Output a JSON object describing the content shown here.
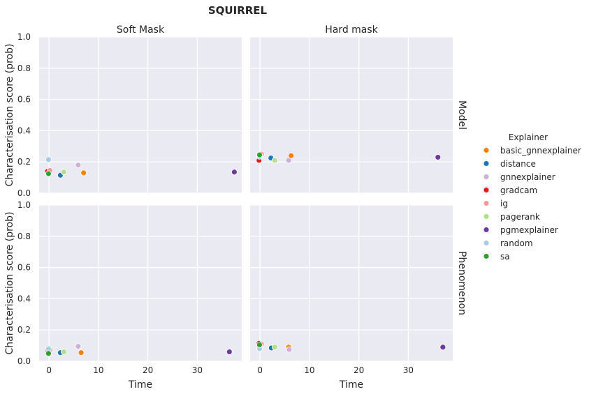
{
  "chart_data": {
    "type": "scatter",
    "title": "SQUIRREL",
    "columns": [
      "Soft Mask",
      "Hard mask"
    ],
    "rows": [
      "Model",
      "Phenomenon"
    ],
    "xlabel": "Time",
    "ylabel": "Characterisation score (prob)",
    "xlim": [
      -2,
      39
    ],
    "ylim": [
      0,
      1
    ],
    "xticks": [
      0,
      10,
      20,
      30
    ],
    "yticks": [
      0.0,
      0.2,
      0.4,
      0.6,
      0.8,
      1.0
    ],
    "xtick_labels": [
      "0",
      "10",
      "20",
      "30"
    ],
    "ytick_labels": [
      "0.0",
      "0.2",
      "0.4",
      "0.6",
      "0.8",
      "1.0"
    ],
    "grid": true,
    "legend_title": "Explainer",
    "legend_position": "right",
    "series": [
      {
        "name": "basic_gnnexplainer",
        "color": "#ff7f00",
        "points": {
          "Model|Soft Mask": [
            7.0,
            0.13
          ],
          "Model|Hard mask": [
            6.3,
            0.24
          ],
          "Phenomenon|Soft Mask": [
            6.5,
            0.055
          ],
          "Phenomenon|Hard mask": [
            5.8,
            0.09
          ]
        }
      },
      {
        "name": "distance",
        "color": "#1f78b4",
        "points": {
          "Model|Soft Mask": [
            2.3,
            0.115
          ],
          "Model|Hard mask": [
            2.2,
            0.225
          ],
          "Phenomenon|Soft Mask": [
            2.3,
            0.055
          ],
          "Phenomenon|Hard mask": [
            2.3,
            0.085
          ]
        }
      },
      {
        "name": "gnnexplainer",
        "color": "#cab2d6",
        "points": {
          "Model|Soft Mask": [
            5.9,
            0.18
          ],
          "Model|Hard mask": [
            5.8,
            0.21
          ],
          "Phenomenon|Soft Mask": [
            5.9,
            0.095
          ],
          "Phenomenon|Hard mask": [
            5.9,
            0.075
          ]
        }
      },
      {
        "name": "gradcam",
        "color": "#e31a1c",
        "points": {
          "Model|Soft Mask": [
            -0.3,
            0.14
          ],
          "Model|Hard mask": [
            -0.2,
            0.21
          ],
          "Phenomenon|Soft Mask": [
            -0.2,
            0.07
          ],
          "Phenomenon|Hard mask": [
            -0.2,
            0.115
          ]
        }
      },
      {
        "name": "ig",
        "color": "#fb9a99",
        "points": {
          "Model|Soft Mask": [
            0.2,
            0.145
          ],
          "Model|Hard mask": [
            0.3,
            0.25
          ],
          "Phenomenon|Soft Mask": [
            0.2,
            0.075
          ],
          "Phenomenon|Hard mask": [
            0.3,
            0.11
          ]
        }
      },
      {
        "name": "pagerank",
        "color": "#b2df8a",
        "points": {
          "Model|Soft Mask": [
            3.0,
            0.135
          ],
          "Model|Hard mask": [
            3.0,
            0.21
          ],
          "Phenomenon|Soft Mask": [
            3.0,
            0.06
          ],
          "Phenomenon|Hard mask": [
            3.0,
            0.09
          ]
        }
      },
      {
        "name": "pgmexplainer",
        "color": "#6a3d9a",
        "points": {
          "Model|Soft Mask": [
            37.5,
            0.135
          ],
          "Model|Hard mask": [
            36.0,
            0.23
          ],
          "Phenomenon|Soft Mask": [
            36.5,
            0.06
          ],
          "Phenomenon|Hard mask": [
            37.0,
            0.09
          ]
        }
      },
      {
        "name": "random",
        "color": "#a6cee3",
        "points": {
          "Model|Soft Mask": [
            -0.1,
            0.215
          ],
          "Model|Hard mask": [
            -0.1,
            0.235
          ],
          "Phenomenon|Soft Mask": [
            -0.1,
            0.08
          ],
          "Phenomenon|Hard mask": [
            -0.1,
            0.08
          ]
        }
      },
      {
        "name": "sa",
        "color": "#33a02c",
        "points": {
          "Model|Soft Mask": [
            -0.1,
            0.125
          ],
          "Model|Hard mask": [
            -0.1,
            0.245
          ],
          "Phenomenon|Soft Mask": [
            -0.1,
            0.05
          ],
          "Phenomenon|Hard mask": [
            -0.1,
            0.105
          ]
        }
      }
    ]
  }
}
